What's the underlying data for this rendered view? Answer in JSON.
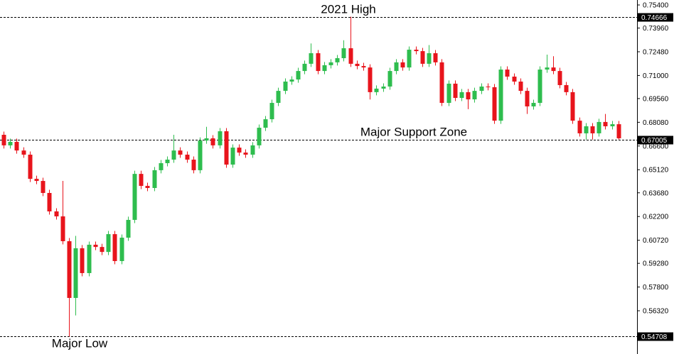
{
  "chart_data": {
    "type": "candlestick",
    "up_color": "#2ebd4e",
    "down_color": "#e8141c",
    "ylim": [
      0.5402,
      0.7571
    ],
    "yticks": [
      {
        "value": 0.754,
        "label": "0.75400"
      },
      {
        "value": 0.7396,
        "label": "0.73960"
      },
      {
        "value": 0.7248,
        "label": "0.72480"
      },
      {
        "value": 0.71,
        "label": "0.71000"
      },
      {
        "value": 0.6956,
        "label": "0.69560"
      },
      {
        "value": 0.6808,
        "label": "0.68080"
      },
      {
        "value": 0.666,
        "label": "0.66600"
      },
      {
        "value": 0.6512,
        "label": "0.65120"
      },
      {
        "value": 0.6368,
        "label": "0.63680"
      },
      {
        "value": 0.622,
        "label": "0.62200"
      },
      {
        "value": 0.6072,
        "label": "0.60720"
      },
      {
        "value": 0.5928,
        "label": "0.59280"
      },
      {
        "value": 0.578,
        "label": "0.57800"
      },
      {
        "value": 0.5632,
        "label": "0.56320"
      }
    ],
    "levels": [
      {
        "value": 0.74666,
        "label": "0.74666",
        "annotation": "2021 High"
      },
      {
        "value": 0.67005,
        "label": "0.67005",
        "annotation": "Major Support Zone"
      },
      {
        "value": 0.54708,
        "label": "0.54708",
        "annotation": "Major Low"
      }
    ],
    "open": [
      0.673,
      0.6664,
      0.6686,
      0.6632,
      0.6606,
      0.6455,
      0.6442,
      0.6367,
      0.6252,
      0.6221,
      0.6066,
      0.5712,
      0.6022,
      0.5867,
      0.6044,
      0.603,
      0.5999,
      0.611,
      0.5942,
      0.6088,
      0.6199,
      0.6486,
      0.6411,
      0.6398,
      0.6509,
      0.6553,
      0.6575,
      0.6632,
      0.6606,
      0.6575,
      0.6509,
      0.6694,
      0.6708,
      0.6664,
      0.6752,
      0.6544,
      0.665,
      0.6619,
      0.6606,
      0.6664,
      0.6774,
      0.6827,
      0.6929,
      0.7004,
      0.7062,
      0.7075,
      0.7128,
      0.7173,
      0.7239,
      0.7128,
      0.7164,
      0.7182,
      0.7208,
      0.727,
      0.7173,
      0.7159,
      0.715,
      0.6996,
      0.7018,
      0.7031,
      0.7128,
      0.7182,
      0.715,
      0.7261,
      0.7252,
      0.7173,
      0.7239,
      0.7182,
      0.6929,
      0.7049,
      0.696,
      0.6996,
      0.6951,
      0.7004,
      0.7031,
      0.7027,
      0.6818,
      0.7137,
      0.7093,
      0.7062,
      0.7004,
      0.6907,
      0.6929,
      0.7137,
      0.715,
      0.7128,
      0.704,
      0.6996,
      0.6818,
      0.6739,
      0.6783,
      0.6739,
      0.681,
      0.6783,
      0.6796
    ],
    "high": [
      0.675,
      0.6706,
      0.6706,
      0.6652,
      0.6626,
      0.6475,
      0.6462,
      0.6387,
      0.6272,
      0.6442,
      0.6086,
      0.6099,
      0.6042,
      0.6064,
      0.6064,
      0.605,
      0.613,
      0.613,
      0.6108,
      0.6219,
      0.6506,
      0.6506,
      0.6431,
      0.6529,
      0.6573,
      0.6595,
      0.673,
      0.6652,
      0.6626,
      0.6595,
      0.6714,
      0.678,
      0.6728,
      0.6772,
      0.6772,
      0.667,
      0.667,
      0.6639,
      0.6684,
      0.6794,
      0.6847,
      0.6949,
      0.7024,
      0.7082,
      0.7095,
      0.7148,
      0.7193,
      0.73,
      0.7259,
      0.7184,
      0.7202,
      0.7228,
      0.732,
      0.7467,
      0.7193,
      0.7179,
      0.717,
      0.7038,
      0.7051,
      0.7148,
      0.7202,
      0.7202,
      0.7281,
      0.7281,
      0.7272,
      0.729,
      0.7259,
      0.7202,
      0.7069,
      0.7069,
      0.7016,
      0.7016,
      0.7024,
      0.7051,
      0.7051,
      0.7047,
      0.7157,
      0.7157,
      0.7113,
      0.7082,
      0.7024,
      0.6949,
      0.7157,
      0.723,
      0.722,
      0.7148,
      0.706,
      0.7016,
      0.6838,
      0.6803,
      0.6803,
      0.683,
      0.686,
      0.6816,
      0.6816
    ],
    "low": [
      0.6644,
      0.6644,
      0.6612,
      0.6586,
      0.6435,
      0.6422,
      0.6347,
      0.6232,
      0.6201,
      0.6046,
      0.5471,
      0.5603,
      0.5847,
      0.5847,
      0.601,
      0.5979,
      0.5979,
      0.5922,
      0.5922,
      0.6068,
      0.6179,
      0.6391,
      0.6378,
      0.6378,
      0.6489,
      0.6533,
      0.6555,
      0.6586,
      0.6555,
      0.6489,
      0.6489,
      0.6674,
      0.6644,
      0.6644,
      0.6524,
      0.6524,
      0.6599,
      0.6586,
      0.6586,
      0.6644,
      0.6754,
      0.6807,
      0.6909,
      0.6984,
      0.7042,
      0.7055,
      0.7108,
      0.7153,
      0.7108,
      0.7108,
      0.7144,
      0.7162,
      0.7188,
      0.7153,
      0.7139,
      0.713,
      0.695,
      0.6976,
      0.6998,
      0.7011,
      0.7108,
      0.713,
      0.713,
      0.7232,
      0.7153,
      0.7153,
      0.7162,
      0.6909,
      0.6909,
      0.694,
      0.694,
      0.689,
      0.6931,
      0.6984,
      0.7007,
      0.6798,
      0.6798,
      0.7073,
      0.7042,
      0.6984,
      0.686,
      0.6887,
      0.6909,
      0.7117,
      0.7108,
      0.702,
      0.6976,
      0.6798,
      0.6719,
      0.67,
      0.67,
      0.6719,
      0.6763,
      0.6763,
      0.67
    ],
    "close": [
      0.6664,
      0.6686,
      0.6632,
      0.6606,
      0.6455,
      0.6442,
      0.6367,
      0.6252,
      0.6221,
      0.6066,
      0.5712,
      0.6022,
      0.5867,
      0.6044,
      0.603,
      0.5999,
      0.611,
      0.5942,
      0.6088,
      0.6199,
      0.6486,
      0.6411,
      0.6398,
      0.6509,
      0.6553,
      0.6575,
      0.6632,
      0.6606,
      0.6575,
      0.6509,
      0.6694,
      0.6708,
      0.6664,
      0.6752,
      0.6544,
      0.665,
      0.6619,
      0.6606,
      0.6664,
      0.6774,
      0.6827,
      0.6929,
      0.7004,
      0.7062,
      0.7075,
      0.7128,
      0.7173,
      0.7239,
      0.7128,
      0.7164,
      0.7182,
      0.7208,
      0.727,
      0.7173,
      0.7159,
      0.715,
      0.6996,
      0.7018,
      0.7031,
      0.7128,
      0.7182,
      0.715,
      0.7261,
      0.7252,
      0.7173,
      0.7239,
      0.7182,
      0.6929,
      0.7049,
      0.696,
      0.6996,
      0.6951,
      0.7004,
      0.7031,
      0.7027,
      0.6818,
      0.7137,
      0.7093,
      0.7062,
      0.7004,
      0.6907,
      0.6929,
      0.7137,
      0.715,
      0.7128,
      0.704,
      0.6996,
      0.6818,
      0.6739,
      0.6783,
      0.6739,
      0.681,
      0.6783,
      0.6796,
      0.6708
    ]
  }
}
